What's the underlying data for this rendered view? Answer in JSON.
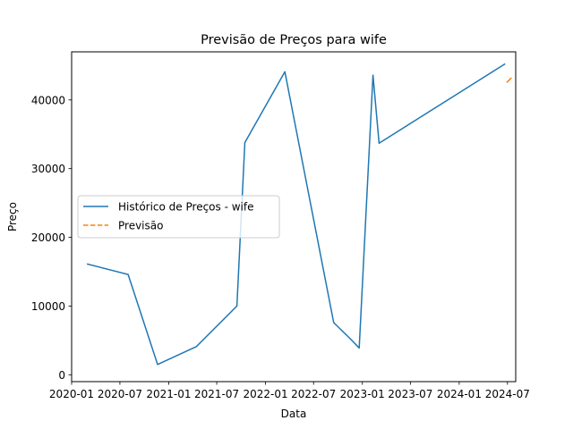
{
  "chart_data": {
    "type": "line",
    "title": "Previsão de Preços para wife",
    "xlabel": "Data",
    "ylabel": "Preço",
    "xlim": [
      "2020-01-01",
      "2024-08-01"
    ],
    "ylim": [
      -1000,
      47000
    ],
    "x_ticks": [
      "2020-01",
      "2020-07",
      "2021-01",
      "2021-07",
      "2022-01",
      "2022-07",
      "2023-01",
      "2023-07",
      "2024-01",
      "2024-07"
    ],
    "y_ticks": [
      0,
      10000,
      20000,
      30000,
      40000
    ],
    "grid": false,
    "legend_position": "center-left",
    "series": [
      {
        "name": "Histórico de Preços - wife",
        "color": "#1f77b4",
        "style": "solid",
        "points": [
          {
            "x": "2020-03-01",
            "y": 16100
          },
          {
            "x": "2020-08-01",
            "y": 14600
          },
          {
            "x": "2020-11-20",
            "y": 1500
          },
          {
            "x": "2021-04-15",
            "y": 4100
          },
          {
            "x": "2021-09-15",
            "y": 10000
          },
          {
            "x": "2021-10-15",
            "y": 33800
          },
          {
            "x": "2022-03-15",
            "y": 44100
          },
          {
            "x": "2022-09-15",
            "y": 7600
          },
          {
            "x": "2022-11-15",
            "y": 5300
          },
          {
            "x": "2022-12-20",
            "y": 3900
          },
          {
            "x": "2023-02-10",
            "y": 43600
          },
          {
            "x": "2023-03-05",
            "y": 33700
          },
          {
            "x": "2024-06-20",
            "y": 45200
          }
        ]
      },
      {
        "name": "Previsão",
        "color": "#ff7f0e",
        "style": "dashed",
        "points": [
          {
            "x": "2024-06-30",
            "y": 42600
          },
          {
            "x": "2024-07-15",
            "y": 43200
          }
        ]
      }
    ]
  }
}
